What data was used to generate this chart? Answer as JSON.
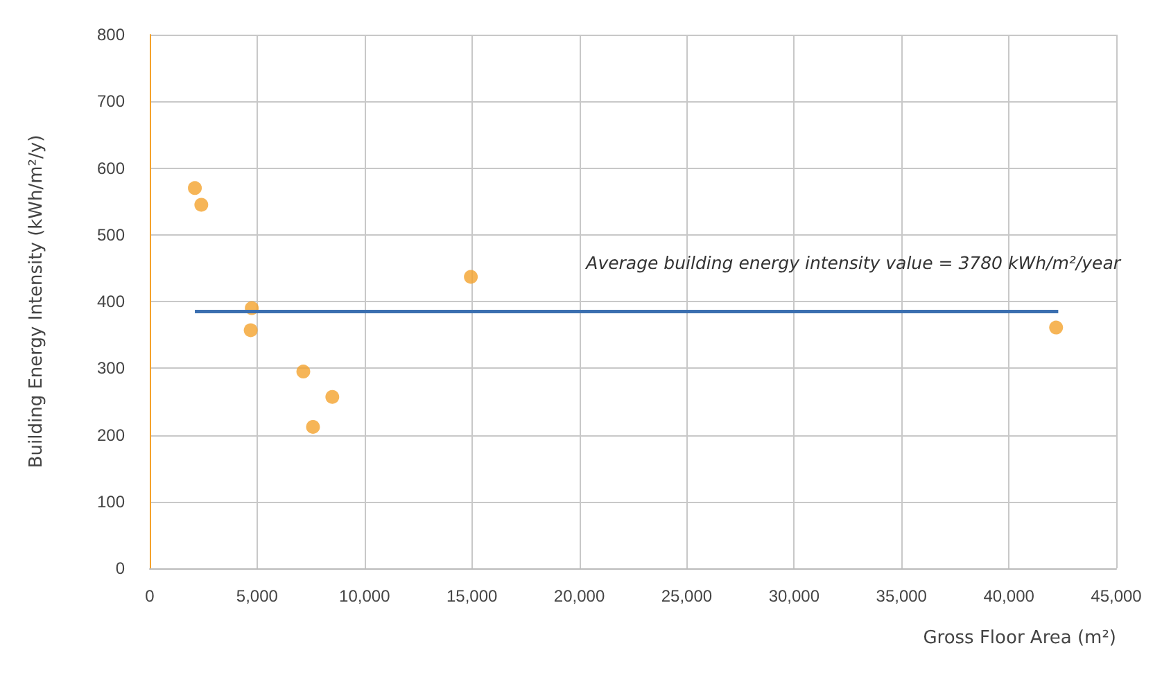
{
  "chart_data": {
    "type": "scatter",
    "xlabel": "Gross Floor Area (m²)",
    "ylabel": "Building Energy Intensity (kWh/m²/y)",
    "xlim": [
      0,
      45000
    ],
    "xticks": [
      0,
      {
        "value": 5000,
        "label": "5,000"
      },
      {
        "value": 10000,
        "label": "10,000"
      },
      {
        "value": 15000,
        "label": "15,000"
      },
      {
        "value": 20000,
        "label": "20,000"
      },
      {
        "value": 25000,
        "label": "25,000"
      },
      {
        "value": 30000,
        "label": "30,000"
      },
      {
        "value": 35000,
        "label": "35,000"
      },
      {
        "value": 40000,
        "label": "40,000"
      },
      {
        "value": 45000,
        "label": "45,000"
      }
    ],
    "ylim": [
      0,
      800
    ],
    "yticks": [
      0,
      100,
      200,
      300,
      400,
      500,
      600,
      700,
      800
    ],
    "grid": true,
    "series": [
      {
        "color": "#f4a22d",
        "marker": "circle",
        "x": [
          2100,
          2400,
          4750,
          4700,
          7150,
          7600,
          8500,
          14950,
          42200
        ],
        "values": [
          570,
          545,
          390,
          357,
          295,
          212,
          257,
          437,
          361
        ]
      },
      {
        "type": "line",
        "color": "#3b6fb0",
        "x": [
          2100,
          42300
        ],
        "values": [
          385,
          385
        ]
      }
    ],
    "annotations": [
      "Average building energy intensity value = 3780 kWh/m²/year"
    ]
  }
}
